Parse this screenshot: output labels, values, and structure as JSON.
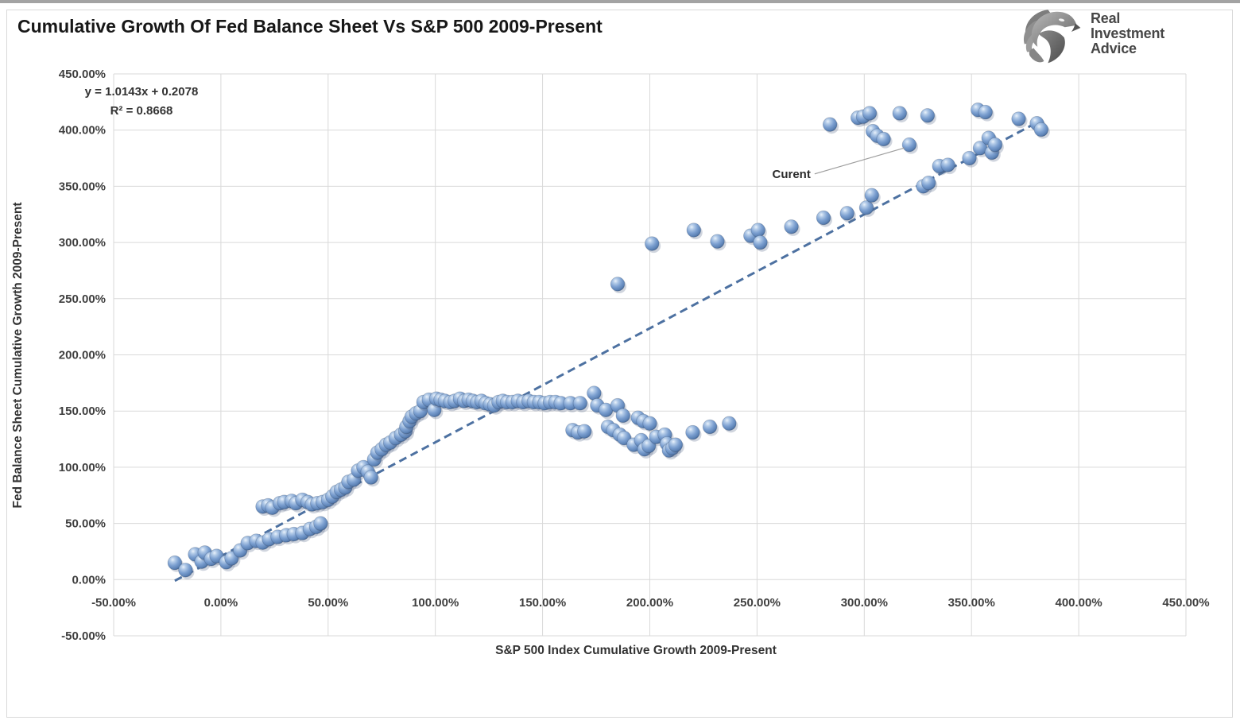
{
  "header": {
    "title": "Cumulative Growth Of Fed Balance Sheet Vs S&P 500 2009-Present"
  },
  "logo": {
    "name": "Real Investment Advice",
    "lines": [
      "Real",
      "Investment",
      "Advice"
    ]
  },
  "chart_data": {
    "type": "scatter",
    "title": "Cumulative Growth Of Fed Balance Sheet Vs S&P 500 2009-Present",
    "xlabel": "S&P 500 Index Cumulative Growth 2009-Present",
    "ylabel": "Fed Balance Sheet Cumulative Growth 2009-Present",
    "xlim": [
      -50,
      450
    ],
    "ylim": [
      -50,
      450
    ],
    "grid": true,
    "x_tick_values": [
      -50,
      0,
      50,
      100,
      150,
      200,
      250,
      300,
      350,
      400,
      450
    ],
    "x_ticks": [
      "-50.00%",
      "0.00%",
      "50.00%",
      "100.00%",
      "150.00%",
      "200.00%",
      "250.00%",
      "300.00%",
      "350.00%",
      "400.00%",
      "450.00%"
    ],
    "y_tick_values": [
      450,
      400,
      350,
      300,
      250,
      200,
      150,
      100,
      50,
      0,
      -50
    ],
    "y_ticks": [
      "450.00%",
      "400.00%",
      "350.00%",
      "300.00%",
      "250.00%",
      "200.00%",
      "150.00%",
      "100.00%",
      "50.00%",
      "0.00%",
      "-50.00%"
    ],
    "trendline": {
      "equation_label": "y = 1.0143x + 0.2078",
      "r2_label": "R² = 0.8668",
      "slope": 1.0143,
      "intercept_pct": 20.78,
      "x_start": -21.5,
      "x_end": 383,
      "style": "dashed",
      "color": "#4d71a1"
    },
    "annotation": {
      "label": "Curent",
      "point_x": 321,
      "point_y": 387,
      "label_x": 275,
      "label_y": 361
    },
    "marker": {
      "shape": "sphere",
      "radius": 8.8,
      "highlight_color": "#e9f1fa",
      "mid_color": "#7b9fd0",
      "edge_color": "#41608e",
      "shadow_color": "rgba(100,115,145,0.30)"
    },
    "grid_color": "#d9d9d9",
    "points": [
      [
        -21.5,
        15
      ],
      [
        -16.5,
        8.5
      ],
      [
        -12,
        22.5
      ],
      [
        -9,
        16
      ],
      [
        -7.5,
        24
      ],
      [
        -4.5,
        18.5
      ],
      [
        -2,
        21
      ],
      [
        2.5,
        15.5
      ],
      [
        5,
        19
      ],
      [
        9,
        26
      ],
      [
        12.5,
        32.5
      ],
      [
        16.5,
        34.5
      ],
      [
        19.5,
        33
      ],
      [
        22.5,
        36
      ],
      [
        26.5,
        38
      ],
      [
        30.5,
        39.5
      ],
      [
        34,
        40.5
      ],
      [
        38,
        41.5
      ],
      [
        41.5,
        45
      ],
      [
        44.5,
        47
      ],
      [
        46.5,
        50
      ],
      [
        19.5,
        65
      ],
      [
        22,
        66
      ],
      [
        24,
        64
      ],
      [
        27.5,
        68
      ],
      [
        29.5,
        69
      ],
      [
        33,
        70
      ],
      [
        35,
        68
      ],
      [
        38,
        71
      ],
      [
        40.5,
        69
      ],
      [
        42.5,
        67
      ],
      [
        45,
        68
      ],
      [
        47.5,
        69
      ],
      [
        50,
        71
      ],
      [
        52,
        74
      ],
      [
        54,
        78
      ],
      [
        56,
        80
      ],
      [
        58,
        82
      ],
      [
        59.5,
        87
      ],
      [
        62,
        89
      ],
      [
        64,
        97
      ],
      [
        66.5,
        100
      ],
      [
        68.5,
        96
      ],
      [
        70,
        91
      ],
      [
        71.5,
        107
      ],
      [
        73,
        113
      ],
      [
        75,
        116
      ],
      [
        77,
        120
      ],
      [
        79,
        122
      ],
      [
        81.5,
        126
      ],
      [
        84,
        129
      ],
      [
        86,
        132
      ],
      [
        86.5,
        136
      ],
      [
        88,
        141
      ],
      [
        89,
        145
      ],
      [
        91,
        148
      ],
      [
        93,
        150
      ],
      [
        94.5,
        158
      ],
      [
        97,
        160
      ],
      [
        99.5,
        151
      ],
      [
        100.5,
        161
      ],
      [
        102.5,
        160
      ],
      [
        104.5,
        159
      ],
      [
        107,
        158
      ],
      [
        109,
        159
      ],
      [
        111.5,
        161
      ],
      [
        113.5,
        159
      ],
      [
        115.5,
        160
      ],
      [
        117.5,
        159
      ],
      [
        119.5,
        158
      ],
      [
        121.5,
        159
      ],
      [
        123.5,
        157
      ],
      [
        125.5,
        156
      ],
      [
        127.5,
        155
      ],
      [
        129.5,
        158
      ],
      [
        131.5,
        159
      ],
      [
        133.5,
        158
      ],
      [
        136,
        158
      ],
      [
        138.5,
        159
      ],
      [
        141,
        158
      ],
      [
        143.5,
        159
      ],
      [
        146,
        158
      ],
      [
        148.5,
        158
      ],
      [
        151,
        157
      ],
      [
        153.5,
        158
      ],
      [
        156,
        158
      ],
      [
        158.5,
        157
      ],
      [
        163,
        157
      ],
      [
        167.5,
        157
      ],
      [
        174,
        166
      ],
      [
        175.5,
        155
      ],
      [
        179.5,
        151
      ],
      [
        185,
        155
      ],
      [
        187.5,
        146
      ],
      [
        194.5,
        144
      ],
      [
        197,
        141
      ],
      [
        200,
        139
      ],
      [
        164,
        133
      ],
      [
        166.5,
        131
      ],
      [
        169.5,
        132
      ],
      [
        180.5,
        136
      ],
      [
        183,
        133
      ],
      [
        186,
        129
      ],
      [
        188,
        126
      ],
      [
        192.5,
        120
      ],
      [
        196,
        124
      ],
      [
        197.5,
        116
      ],
      [
        199.5,
        119
      ],
      [
        203,
        127
      ],
      [
        207,
        129
      ],
      [
        208,
        121
      ],
      [
        209,
        115
      ],
      [
        210.5,
        117
      ],
      [
        212,
        120
      ],
      [
        220,
        131
      ],
      [
        228,
        136
      ],
      [
        237,
        139
      ],
      [
        185,
        263
      ],
      [
        201,
        299
      ],
      [
        220.5,
        311
      ],
      [
        231.5,
        301
      ],
      [
        247,
        306
      ],
      [
        250.5,
        311
      ],
      [
        251.5,
        300
      ],
      [
        266,
        314
      ],
      [
        281,
        322
      ],
      [
        292,
        326
      ],
      [
        301,
        331
      ],
      [
        303.5,
        342
      ],
      [
        327.5,
        350
      ],
      [
        330,
        353
      ],
      [
        335,
        368
      ],
      [
        339,
        369
      ],
      [
        349,
        375
      ],
      [
        354,
        384
      ],
      [
        358,
        393
      ],
      [
        359.5,
        380
      ],
      [
        361,
        387
      ],
      [
        284,
        405
      ],
      [
        297,
        411
      ],
      [
        299.5,
        412
      ],
      [
        302.5,
        415
      ],
      [
        304,
        399
      ],
      [
        306,
        395
      ],
      [
        309,
        392
      ],
      [
        316.5,
        415
      ],
      [
        321,
        387
      ],
      [
        329.5,
        413
      ],
      [
        353,
        418
      ],
      [
        356.5,
        416
      ],
      [
        372,
        410
      ],
      [
        380.5,
        406
      ],
      [
        382.5,
        400.5
      ]
    ]
  }
}
